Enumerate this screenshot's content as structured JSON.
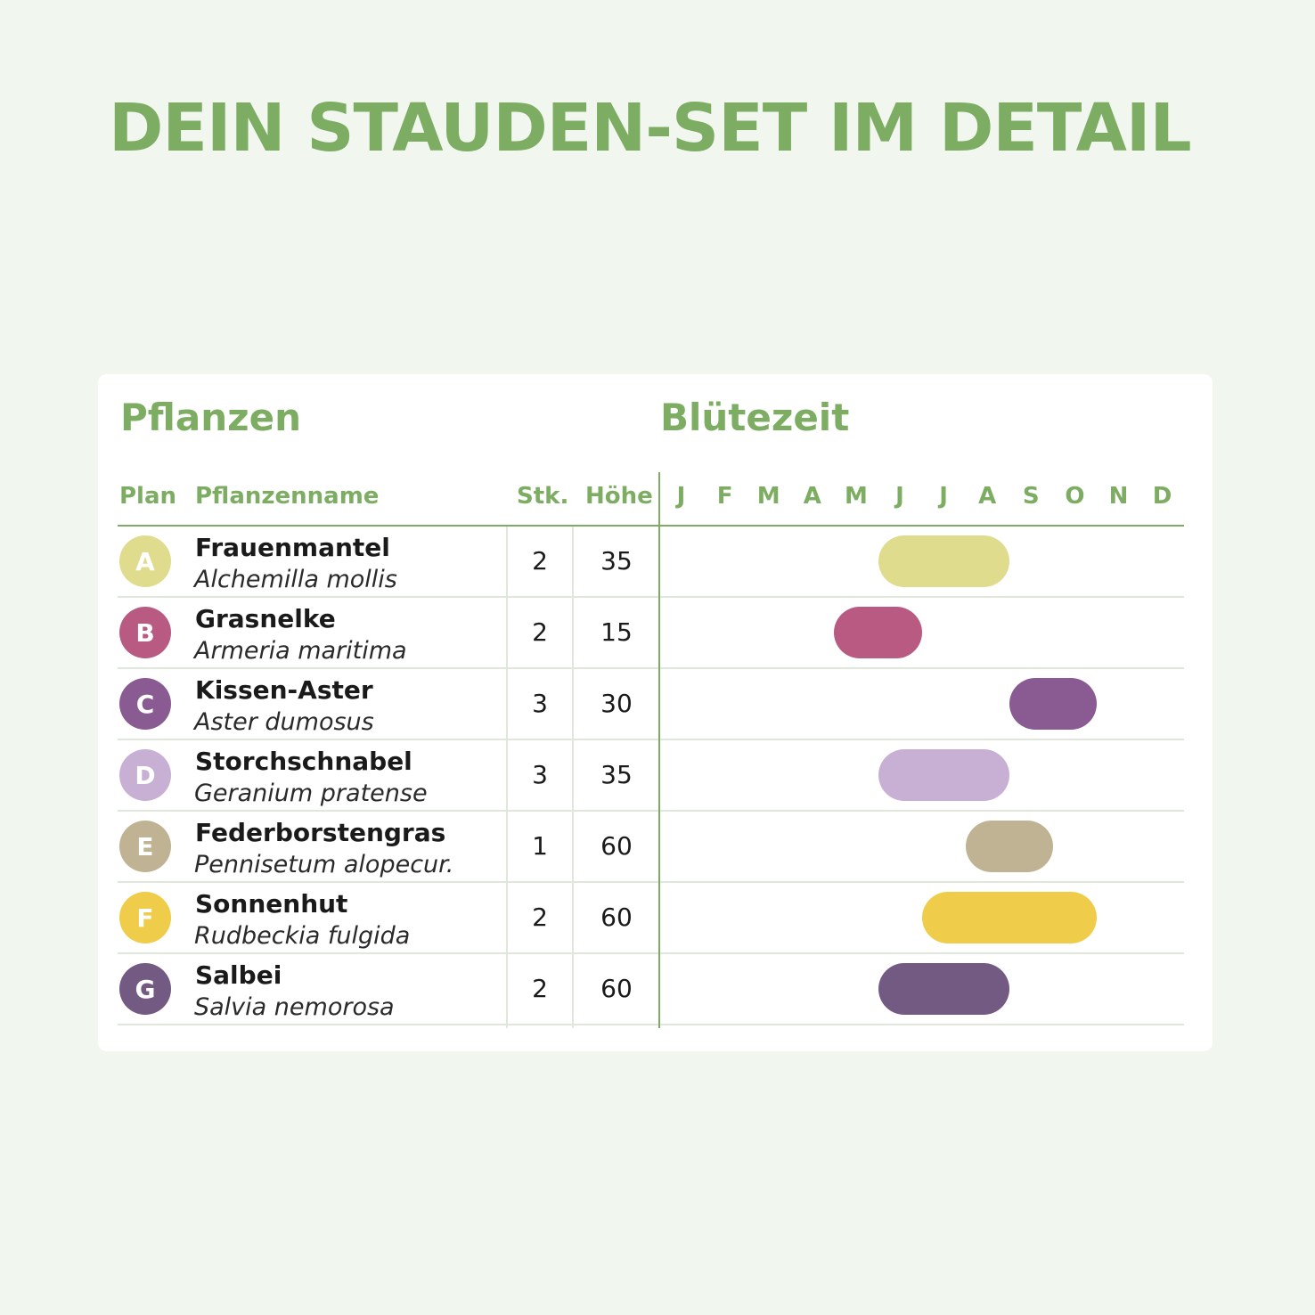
{
  "title": "DEIN STAUDEN-SET IM DETAIL",
  "table": {
    "section_plants": "Pflanzen",
    "section_bloom": "Blütezeit",
    "columns": {
      "plan": "Plan",
      "name": "Pflanzenname",
      "qty": "Stk.",
      "height": "Höhe"
    },
    "months": [
      "J",
      "F",
      "M",
      "A",
      "M",
      "J",
      "J",
      "A",
      "S",
      "O",
      "N",
      "D"
    ],
    "rows": [
      {
        "letter": "A",
        "name": "Frauenmantel",
        "latin": "Alchemilla mollis",
        "qty": "2",
        "height": "35",
        "color": "#dfdc8e",
        "bloom_start": 6,
        "bloom_end": 8
      },
      {
        "letter": "B",
        "name": "Grasnelke",
        "latin": "Armeria maritima",
        "qty": "2",
        "height": "15",
        "color": "#b85a82",
        "bloom_start": 5,
        "bloom_end": 6
      },
      {
        "letter": "C",
        "name": "Kissen-Aster",
        "latin": "Aster dumosus",
        "qty": "3",
        "height": "30",
        "color": "#8a5a92",
        "bloom_start": 9,
        "bloom_end": 10
      },
      {
        "letter": "D",
        "name": "Storchschnabel",
        "latin": "Geranium pratense",
        "qty": "3",
        "height": "35",
        "color": "#c8b0d4",
        "bloom_start": 6,
        "bloom_end": 8
      },
      {
        "letter": "E",
        "name": "Federborstengras",
        "latin": "Pennisetum alopecur.",
        "qty": "1",
        "height": "60",
        "color": "#bfb394",
        "bloom_start": 8,
        "bloom_end": 9
      },
      {
        "letter": "F",
        "name": "Sonnenhut",
        "latin": "Rudbeckia fulgida",
        "qty": "2",
        "height": "60",
        "color": "#efcd4a",
        "bloom_start": 7,
        "bloom_end": 10
      },
      {
        "letter": "G",
        "name": "Salbei",
        "latin": "Salvia nemorosa",
        "qty": "2",
        "height": "60",
        "color": "#735a83",
        "bloom_start": 6,
        "bloom_end": 8
      }
    ]
  }
}
